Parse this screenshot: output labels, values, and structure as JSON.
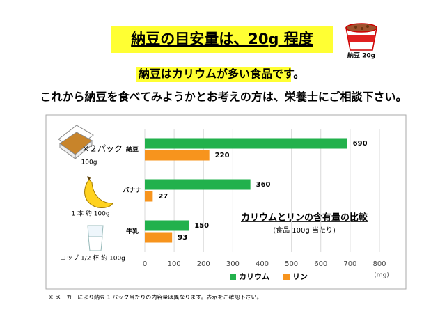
{
  "header": {
    "title": "納豆の目安量は、20g 程度",
    "cup_label": "納豆 20g",
    "subtitle_highlight": "納豆はカリウムが多い食品",
    "subtitle_rest": "です。",
    "advice": "これから納豆を食べてみようかとお考えの方は、栄養士にご相談下さい。"
  },
  "illustrations": [
    {
      "caption": "×２パック",
      "note": "100g"
    },
    {
      "caption": "1 本 約 100g"
    },
    {
      "caption": "コップ 1/2 杯 約 100g"
    }
  ],
  "chart_data": {
    "type": "bar",
    "orientation": "horizontal",
    "title": "カリウムとリンの含有量の比較",
    "subtitle": "(食品 100g 当たり)",
    "unit": "(mg)",
    "categories": [
      "納豆",
      "バナナ",
      "牛乳"
    ],
    "series": [
      {
        "name": "カリウム",
        "color": "#22b14c",
        "values": [
          690,
          360,
          150
        ]
      },
      {
        "name": "リン",
        "color": "#f7941d",
        "values": [
          220,
          27,
          93
        ]
      }
    ],
    "xlim": [
      0,
      800
    ],
    "xticks": [
      0,
      100,
      200,
      300,
      400,
      500,
      600,
      700,
      800
    ],
    "grid": true,
    "legend": "bottom"
  },
  "footnote": "※ メーカーにより納豆 1 パック当たりの内容量は異なります。表示をご確認下さい。"
}
